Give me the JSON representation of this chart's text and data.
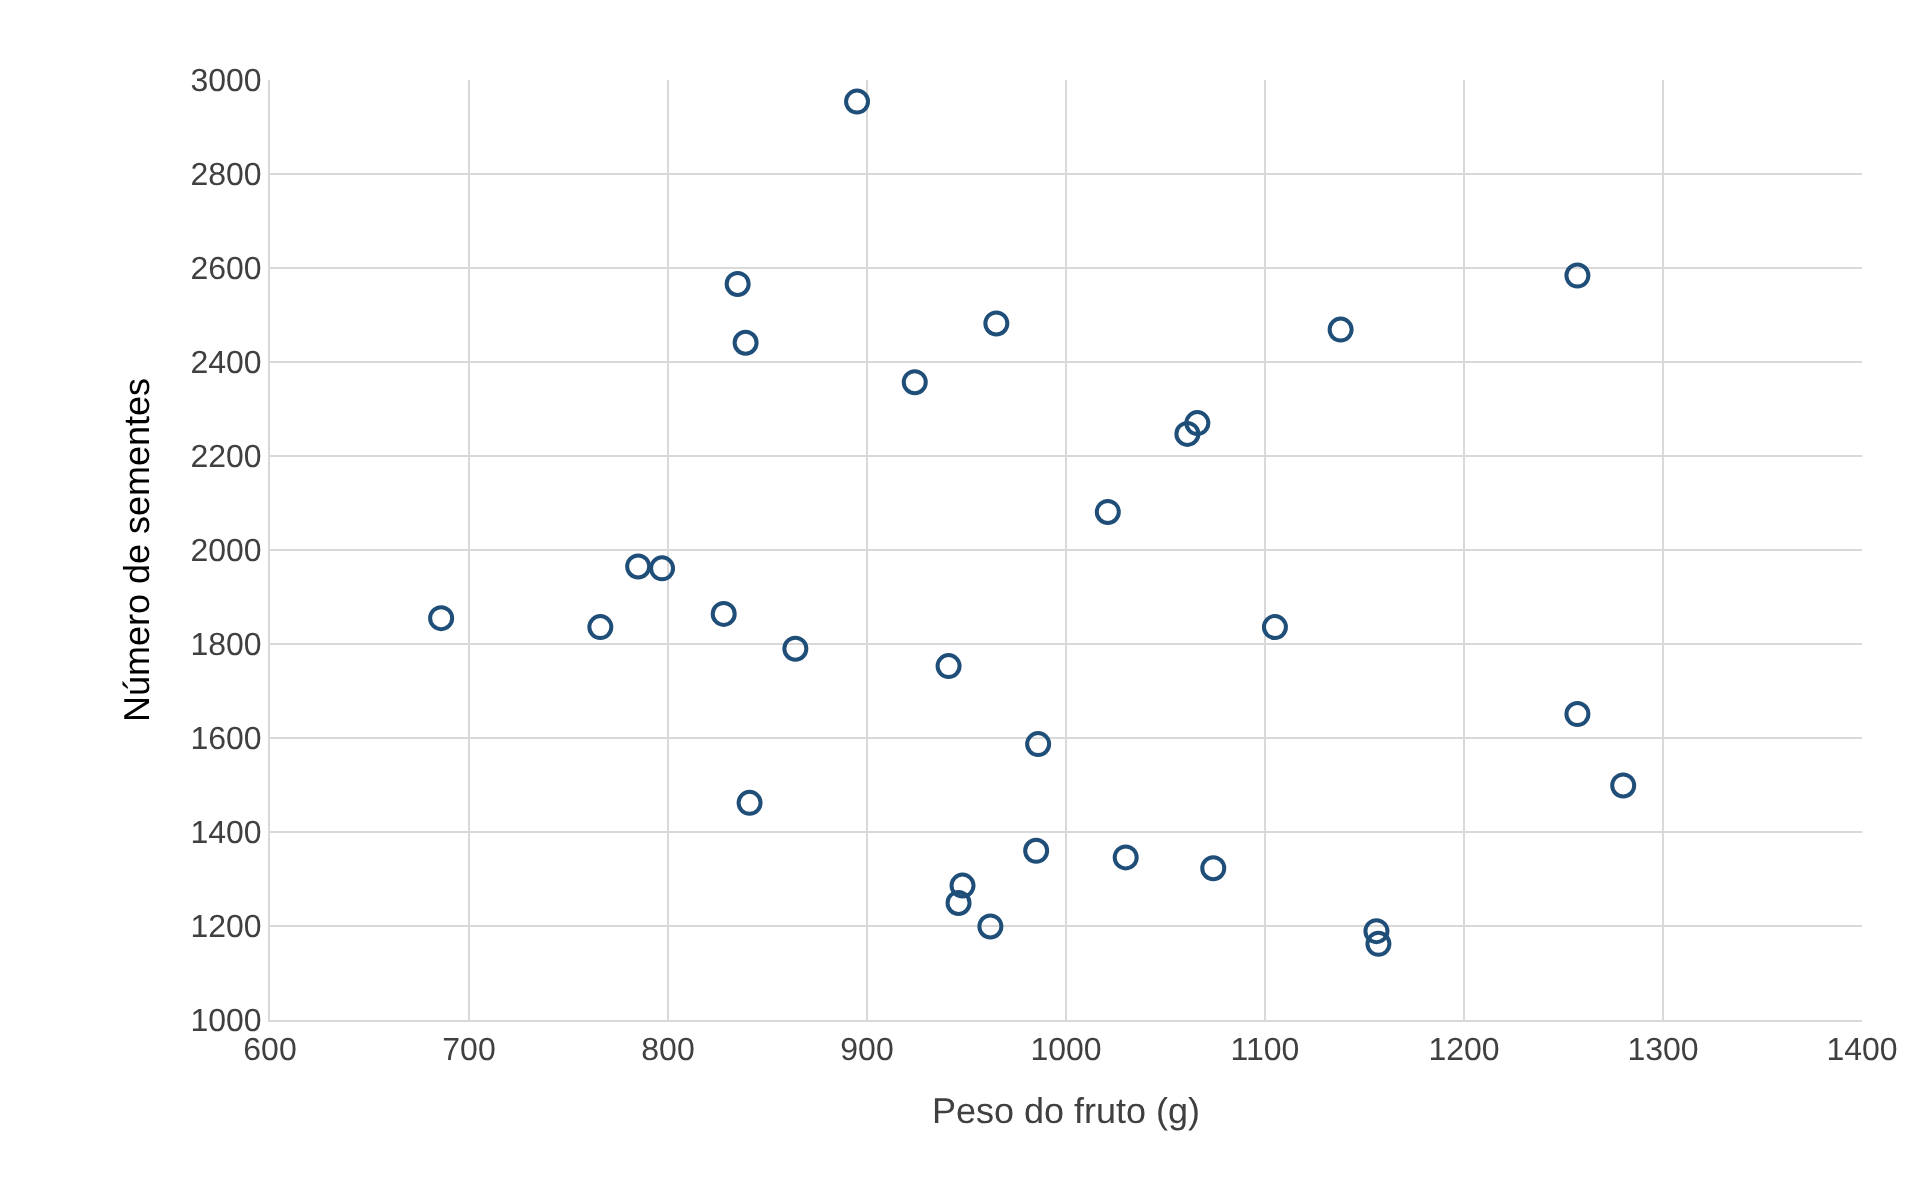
{
  "chart_data": {
    "type": "scatter",
    "xlabel": "Peso do fruto (g)",
    "ylabel": "Número de sementes",
    "x": [
      686,
      766,
      785,
      797,
      828,
      835,
      839,
      841,
      864,
      895,
      924,
      941,
      946,
      948,
      962,
      965,
      985,
      986,
      1021,
      1030,
      1061,
      1066,
      1074,
      1105,
      1138,
      1156,
      1157,
      1257,
      1257,
      1280
    ],
    "series": [
      {
        "color": "#1f4e79",
        "values": [
          1855,
          1836,
          1965,
          1961,
          1864,
          2566,
          2441,
          1462,
          1790,
          2954,
          2357,
          1753,
          1249,
          1286,
          1199,
          2482,
          1360,
          1587,
          2081,
          1346,
          2247,
          2270,
          1323,
          1836,
          2469,
          1189,
          1162,
          2584,
          1651,
          1499
        ]
      }
    ],
    "xlim": [
      600,
      1400
    ],
    "xticks": [
      600,
      700,
      800,
      900,
      1000,
      1100,
      1200,
      1300,
      1400
    ],
    "ylim": [
      1000,
      3000
    ],
    "yticks": [
      1000,
      1200,
      1400,
      1600,
      1800,
      2000,
      2200,
      2400,
      2600,
      2800,
      3000
    ],
    "grid": true,
    "marker": "circle"
  }
}
